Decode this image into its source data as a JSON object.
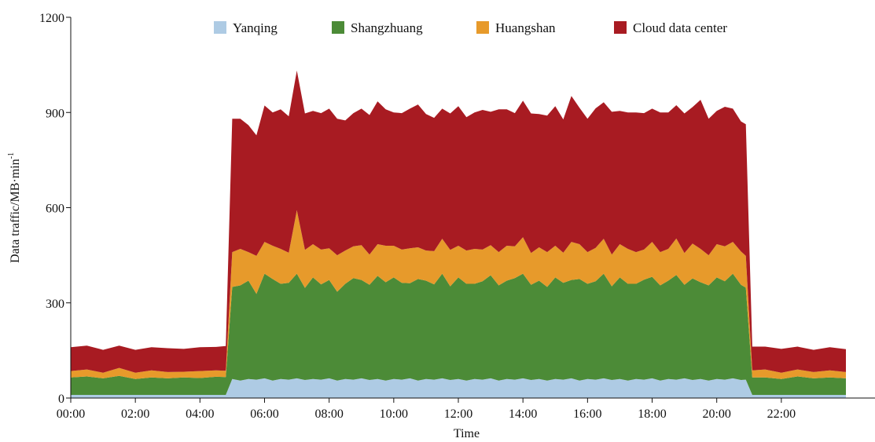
{
  "chart_data": {
    "type": "area",
    "stacked": true,
    "title": "",
    "xlabel": "Time",
    "ylabel": "Data traffic/MB·min",
    "ylabel_superscript": "-1",
    "ylim": [
      0,
      1200
    ],
    "yticks": [
      0,
      300,
      600,
      900,
      1200
    ],
    "xlim": [
      0,
      24
    ],
    "xticks": [
      "00:00",
      "02:00",
      "04:00",
      "06:00",
      "08:00",
      "10:00",
      "12:00",
      "14:00",
      "16:00",
      "18:00",
      "20:00",
      "22:00"
    ],
    "x_unit": "hours",
    "x": [
      0,
      0.5,
      1,
      1.5,
      2,
      2.5,
      3,
      3.5,
      4,
      4.5,
      4.8,
      5,
      5.25,
      5.5,
      5.75,
      6,
      6.25,
      6.5,
      6.75,
      7,
      7.25,
      7.5,
      7.75,
      8,
      8.25,
      8.5,
      8.75,
      9,
      9.25,
      9.5,
      9.75,
      10,
      10.25,
      10.5,
      10.75,
      11,
      11.25,
      11.5,
      11.75,
      12,
      12.25,
      12.5,
      12.75,
      13,
      13.25,
      13.5,
      13.75,
      14,
      14.25,
      14.5,
      14.75,
      15,
      15.25,
      15.5,
      15.75,
      16,
      16.25,
      16.5,
      16.75,
      17,
      17.25,
      17.5,
      17.75,
      18,
      18.25,
      18.5,
      18.75,
      19,
      19.25,
      19.5,
      19.75,
      20,
      20.25,
      20.5,
      20.75,
      20.9,
      21.1,
      21.5,
      22,
      22.5,
      23,
      23.5,
      24
    ],
    "series": [
      {
        "name": "Yanqing",
        "color": "#aecbe4",
        "values": [
          10,
          10,
          10,
          10,
          10,
          10,
          10,
          10,
          10,
          10,
          10,
          60,
          55,
          60,
          58,
          62,
          55,
          60,
          58,
          62,
          57,
          60,
          58,
          62,
          55,
          60,
          58,
          62,
          57,
          60,
          55,
          60,
          58,
          62,
          55,
          60,
          58,
          62,
          57,
          60,
          55,
          60,
          58,
          62,
          55,
          60,
          58,
          62,
          57,
          60,
          55,
          60,
          58,
          62,
          55,
          60,
          58,
          62,
          57,
          60,
          55,
          60,
          58,
          62,
          55,
          60,
          58,
          62,
          57,
          60,
          55,
          60,
          58,
          62,
          57,
          58,
          10,
          10,
          10,
          10,
          10,
          10,
          10
        ]
      },
      {
        "name": "Shangzhuang",
        "color": "#4c8b37",
        "values": [
          55,
          58,
          52,
          60,
          50,
          55,
          52,
          55,
          53,
          57,
          56,
          290,
          300,
          310,
          270,
          330,
          320,
          300,
          305,
          330,
          290,
          320,
          300,
          310,
          280,
          300,
          320,
          310,
          300,
          325,
          310,
          320,
          305,
          300,
          320,
          310,
          300,
          330,
          295,
          320,
          305,
          300,
          310,
          325,
          300,
          310,
          320,
          330,
          300,
          310,
          295,
          320,
          305,
          310,
          320,
          300,
          310,
          330,
          295,
          320,
          305,
          300,
          315,
          320,
          300,
          310,
          330,
          295,
          320,
          305,
          300,
          320,
          310,
          330,
          300,
          290,
          55,
          55,
          50,
          58,
          52,
          55,
          52
        ]
      },
      {
        "name": "Huangshan",
        "color": "#e79a2b",
        "values": [
          20,
          22,
          18,
          25,
          20,
          22,
          20,
          18,
          22,
          20,
          20,
          110,
          115,
          90,
          120,
          100,
          105,
          110,
          95,
          200,
          120,
          105,
          110,
          100,
          115,
          105,
          100,
          110,
          95,
          100,
          115,
          100,
          105,
          110,
          100,
          95,
          105,
          110,
          115,
          100,
          105,
          110,
          100,
          95,
          105,
          110,
          100,
          115,
          100,
          105,
          110,
          100,
          95,
          120,
          110,
          100,
          105,
          110,
          100,
          105,
          110,
          100,
          95,
          110,
          105,
          100,
          115,
          100,
          110,
          105,
          95,
          105,
          110,
          100,
          105,
          100,
          22,
          25,
          20,
          22,
          20,
          22,
          20
        ]
      },
      {
        "name": "Cloud data center",
        "color": "#a81b22",
        "values": [
          75,
          75,
          72,
          70,
          72,
          73,
          75,
          72,
          75,
          74,
          78,
          420,
          410,
          400,
          380,
          430,
          420,
          440,
          430,
          440,
          430,
          420,
          430,
          440,
          430,
          410,
          420,
          430,
          440,
          450,
          430,
          420,
          430,
          440,
          450,
          430,
          420,
          410,
          430,
          440,
          420,
          430,
          440,
          420,
          450,
          430,
          420,
          430,
          440,
          420,
          430,
          440,
          420,
          460,
          430,
          420,
          440,
          430,
          450,
          420,
          430,
          440,
          430,
          420,
          440,
          430,
          420,
          440,
          430,
          470,
          430,
          420,
          440,
          420,
          410,
          415,
          75,
          72,
          75,
          72,
          70,
          73,
          72
        ]
      }
    ],
    "legend_position": "top",
    "grid": false
  }
}
